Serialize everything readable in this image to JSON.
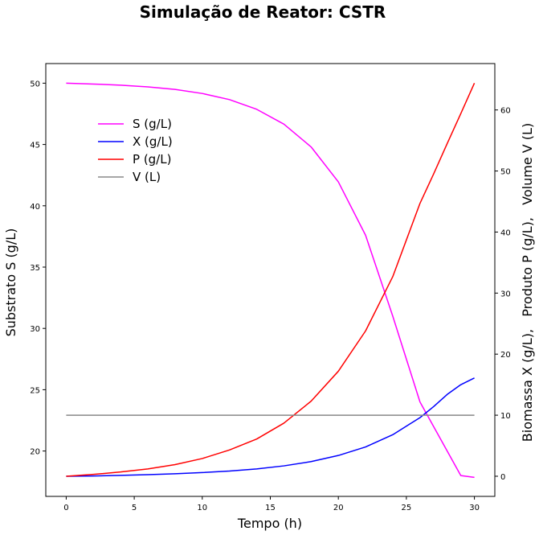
{
  "figure": {
    "title": "Simulação de Reator: CSTR"
  },
  "chart_data": {
    "type": "line",
    "title": "Simulação de Reator: CSTR",
    "xlabel": "Tempo (h)",
    "ylabel_left": "Substrato S (g/L)",
    "ylabel_right": "Biomassa X (g/L),   Produto P (g/L),   Volume V (L)",
    "xlim": [
      -1.5,
      31.5
    ],
    "ylim_left": [
      16.3,
      51.6
    ],
    "ylim_right": [
      -3.3,
      67.6
    ],
    "x_ticks": [
      0,
      5,
      10,
      15,
      20,
      25,
      30
    ],
    "y_left_ticks": [
      20,
      25,
      30,
      35,
      40,
      45,
      50
    ],
    "y_right_ticks": [
      0,
      10,
      20,
      30,
      40,
      50,
      60
    ],
    "grid": false,
    "legend_position": "upper-left",
    "x": [
      0,
      2,
      4,
      6,
      8,
      10,
      12,
      14,
      16,
      18,
      20,
      22,
      24,
      26,
      27,
      28,
      29,
      30
    ],
    "series": [
      {
        "name": "S (g/L)",
        "axis": "left",
        "color": "#ff00ff",
        "values": [
          50.0,
          49.93,
          49.84,
          49.7,
          49.49,
          49.16,
          48.66,
          47.87,
          46.66,
          44.8,
          41.95,
          37.6,
          31.0,
          24.0,
          22.0,
          20.0,
          18.0,
          17.85
        ]
      },
      {
        "name": "X (g/L)",
        "axis": "right",
        "color": "#0000ff",
        "values": [
          0.0,
          0.05,
          0.15,
          0.25,
          0.4,
          0.6,
          0.85,
          1.2,
          1.7,
          2.4,
          3.4,
          4.8,
          6.8,
          9.6,
          11.4,
          13.4,
          15.0,
          16.1
        ]
      },
      {
        "name": "P (g/L)",
        "axis": "right",
        "color": "#ff0000",
        "values": [
          0.0,
          0.3,
          0.7,
          1.2,
          1.9,
          2.9,
          4.3,
          6.1,
          8.7,
          12.3,
          17.2,
          23.8,
          32.7,
          44.7,
          49.5,
          54.5,
          59.4,
          64.4
        ]
      },
      {
        "name": "V (L)",
        "axis": "right",
        "color": "#888888",
        "values": [
          10.0,
          10.0,
          10.0,
          10.0,
          10.0,
          10.0,
          10.0,
          10.0,
          10.0,
          10.0,
          10.0,
          10.0,
          10.0,
          10.0,
          10.0,
          10.0,
          10.0,
          10.0
        ]
      }
    ]
  }
}
